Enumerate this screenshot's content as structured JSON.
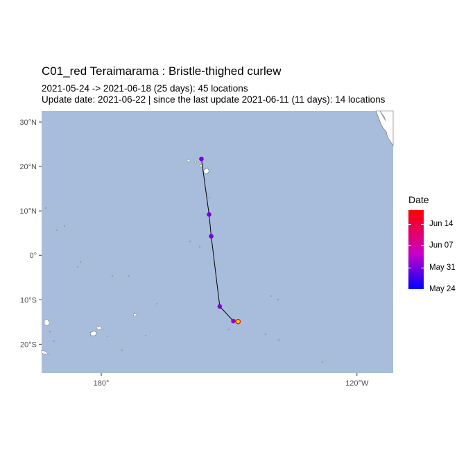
{
  "title": "C01_red Teraimarama :  Bristle-thighed curlew",
  "subtitle_line1": "2021-05-24 -> 2021-06-18 (25 days): 45 locations",
  "subtitle_line2": "Update date: 2021-06-22 |  since the last update 2021-06-11 (11 days): 14 locations",
  "map": {
    "ocean_color": "#a8bddb",
    "land_color": "#ffffff",
    "lon_range": [
      -194.0,
      -111.5
    ],
    "lat_range": [
      -26.5,
      32.5
    ],
    "x_ticks": [
      {
        "lon": -180,
        "label": "180°"
      },
      {
        "lon": -120,
        "label": "120°W"
      }
    ],
    "y_ticks": [
      {
        "lat": 30,
        "label": "30°N"
      },
      {
        "lat": 20,
        "label": "20°N"
      },
      {
        "lat": 10,
        "label": "10°N"
      },
      {
        "lat": 0,
        "label": "0°"
      },
      {
        "lat": -10,
        "label": "10°S"
      },
      {
        "lat": -20,
        "label": "20°S"
      }
    ]
  },
  "chart_data": {
    "type": "scatter",
    "track": [
      {
        "lon": -156.5,
        "lat": 21.7,
        "date": "2021-05-27",
        "color": "#7800dc"
      },
      {
        "lon": -154.7,
        "lat": 9.2,
        "date": "2021-05-28",
        "color": "#7800dc"
      },
      {
        "lon": -154.2,
        "lat": 4.3,
        "date": "2021-05-28",
        "color": "#7a00da"
      },
      {
        "lon": -152.2,
        "lat": -11.5,
        "date": "2021-05-29",
        "color": "#8000d4"
      },
      {
        "lon": -149.0,
        "lat": -14.8,
        "date": "2021-06-01",
        "color": "#9c00b8"
      },
      {
        "lon": -147.9,
        "lat": -14.9,
        "date": "2021-06-18",
        "color": "#ffd700"
      }
    ],
    "last_point_outline": "#ff0000"
  },
  "legend": {
    "title": "Date",
    "labels": [
      "Jun 14",
      "Jun 07",
      "May 31",
      "May 24"
    ]
  }
}
